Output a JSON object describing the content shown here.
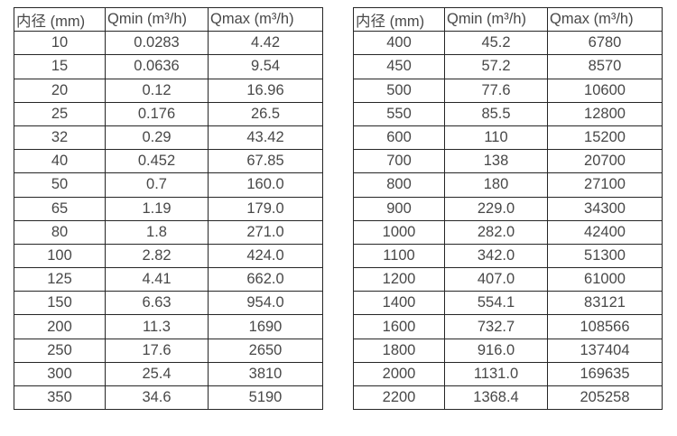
{
  "colors": {
    "border": "#262626",
    "text": "#484848",
    "background": "#ffffff"
  },
  "chart_data": [
    {
      "type": "table",
      "title": "",
      "columns": [
        "内径 (mm)",
        "Qmin (m³/h)",
        "Qmax (m³/h)"
      ],
      "rows": [
        [
          "10",
          "0.0283",
          "4.42"
        ],
        [
          "15",
          "0.0636",
          "9.54"
        ],
        [
          "20",
          "0.12",
          "16.96"
        ],
        [
          "25",
          "0.176",
          "26.5"
        ],
        [
          "32",
          "0.29",
          "43.42"
        ],
        [
          "40",
          "0.452",
          "67.85"
        ],
        [
          "50",
          "0.7",
          "160.0"
        ],
        [
          "65",
          "1.19",
          "179.0"
        ],
        [
          "80",
          "1.8",
          "271.0"
        ],
        [
          "100",
          "2.82",
          "424.0"
        ],
        [
          "125",
          "4.41",
          "662.0"
        ],
        [
          "150",
          "6.63",
          "954.0"
        ],
        [
          "200",
          "11.3",
          "1690"
        ],
        [
          "250",
          "17.6",
          "2650"
        ],
        [
          "300",
          "25.4",
          "3810"
        ],
        [
          "350",
          "34.6",
          "5190"
        ]
      ]
    },
    {
      "type": "table",
      "title": "",
      "columns": [
        "内径 (mm)",
        "Qmin (m³/h)",
        "Qmax (m³/h)"
      ],
      "rows": [
        [
          "400",
          "45.2",
          "6780"
        ],
        [
          "450",
          "57.2",
          "8570"
        ],
        [
          "500",
          "77.6",
          "10600"
        ],
        [
          "550",
          "85.5",
          "12800"
        ],
        [
          "600",
          "110",
          "15200"
        ],
        [
          "700",
          "138",
          "20700"
        ],
        [
          "800",
          "180",
          "27100"
        ],
        [
          "900",
          "229.0",
          "34300"
        ],
        [
          "1000",
          "282.0",
          "42400"
        ],
        [
          "1100",
          "342.0",
          "51300"
        ],
        [
          "1200",
          "407.0",
          "61000"
        ],
        [
          "1400",
          "554.1",
          "83121"
        ],
        [
          "1600",
          "732.7",
          "108566"
        ],
        [
          "1800",
          "916.0",
          "137404"
        ],
        [
          "2000",
          "1131.0",
          "169635"
        ],
        [
          "2200",
          "1368.4",
          "205258"
        ]
      ]
    }
  ]
}
